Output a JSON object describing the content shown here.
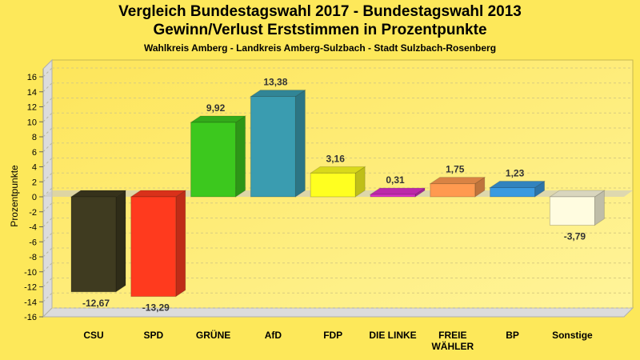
{
  "chart_data": {
    "type": "bar",
    "title": "Vergleich Bundestagswahl 2017 - Bundestagswahl 2013",
    "subtitle": "Gewinn/Verlust Erststimmen in Prozentpunkte",
    "subsubtitle": "Wahlkreis Amberg - Landkreis Amberg-Sulzbach - Stadt Sulzbach-Rosenberg",
    "xlabel": "",
    "ylabel": "Prozentpunkte",
    "ylim": [
      -16,
      16
    ],
    "yticks": [
      16,
      14,
      12,
      10,
      8,
      6,
      4,
      2,
      0,
      -2,
      -4,
      -6,
      -8,
      -10,
      -12,
      -14,
      -16
    ],
    "grid": true,
    "categories": [
      "CSU",
      "SPD",
      "GRÜNE",
      "AfD",
      "FDP",
      "DIE LINKE",
      "FREIE WÄHLER",
      "BP",
      "Sonstige"
    ],
    "category_lines": [
      [
        "CSU"
      ],
      [
        "SPD"
      ],
      [
        "GRÜNE"
      ],
      [
        "AfD"
      ],
      [
        "FDP"
      ],
      [
        "DIE LINKE"
      ],
      [
        "FREIE",
        "WÄHLER"
      ],
      [
        "BP"
      ],
      [
        "Sonstige"
      ]
    ],
    "values": [
      -12.67,
      -13.29,
      9.92,
      13.38,
      3.16,
      0.31,
      1.75,
      1.23,
      -3.79
    ],
    "value_labels": [
      "-12,67",
      "-13,29",
      "9,92",
      "13,38",
      "3,16",
      "0,31",
      "1,75",
      "1,23",
      "-3,79"
    ],
    "colors": [
      "#3f3b20",
      "#ff3a1e",
      "#3cc81e",
      "#3a9cb0",
      "#ffff20",
      "#dd30c8",
      "#ff9a50",
      "#3a9ae0",
      "#fffce0"
    ]
  }
}
